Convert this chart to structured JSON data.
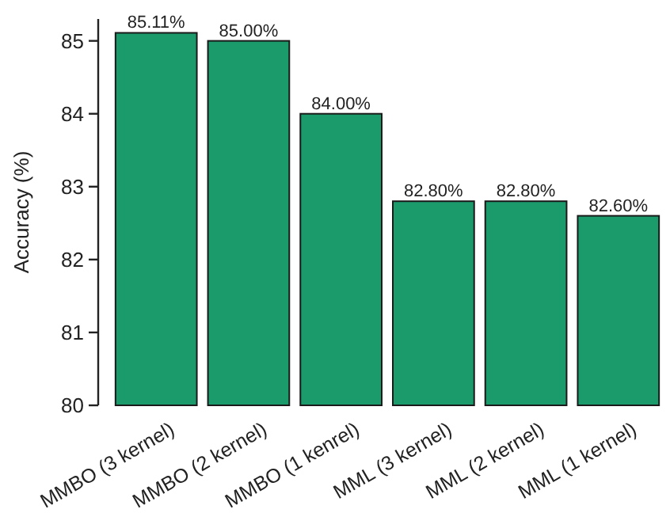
{
  "chart_data": {
    "type": "bar",
    "ylabel": "Accuracy (%)",
    "categories": [
      "MMBO (3 kernel)",
      "MMBO (2 kernel)",
      "MMBO (1 kenrel)",
      "MML (3 kernel)",
      "MML (2 kernel)",
      "MML (1 kernel)"
    ],
    "values": [
      85.11,
      85.0,
      84.0,
      82.8,
      82.8,
      82.6
    ],
    "value_labels": [
      "85.11%",
      "85.00%",
      "84.00%",
      "82.80%",
      "82.80%",
      "82.60%"
    ],
    "color": "#1b9a6c",
    "ylim": [
      80,
      85.3
    ],
    "yticks": [
      80,
      81,
      82,
      83,
      84,
      85
    ],
    "grid": false
  }
}
